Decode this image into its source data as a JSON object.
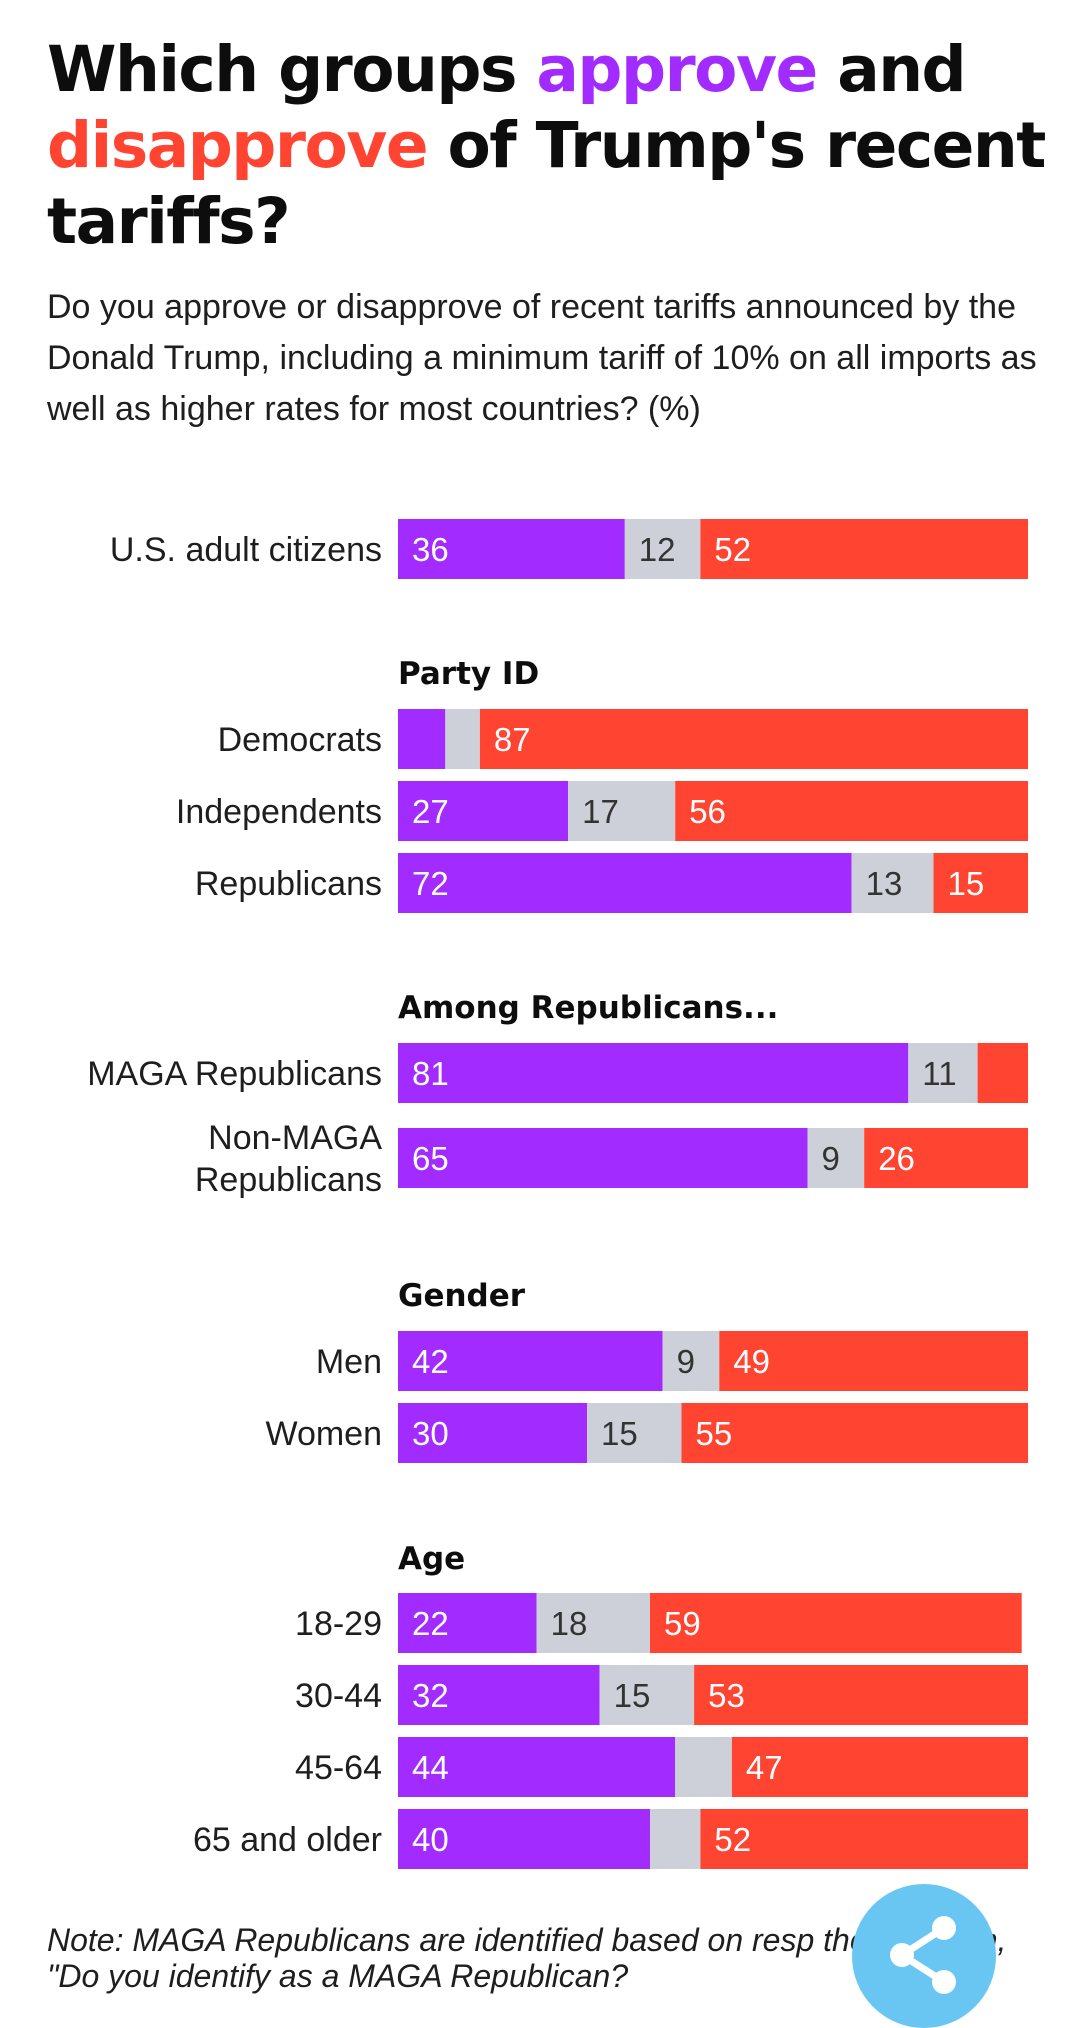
{
  "title": {
    "part1": "Which groups ",
    "approve_word": "approve",
    "part2": " and ",
    "disapprove_word": "disapprove",
    "part3": " of Trump's recent tariffs?"
  },
  "subtitle": "Do you approve or disapprove of recent tariffs announced by the Donald Trump, including a minimum tariff of 10% on all imports as well as higher rates for most countries? (%)",
  "note": "Note: MAGA Republicans are identified based on resp the question, \"Do you identify as a MAGA Republican?",
  "share_icon": "share-icon",
  "colors": {
    "approve": "#a22bff",
    "neither": "#cdd0d8",
    "disapprove": "#ff4531",
    "approve_text": "#ffffff",
    "neither_text": "#333333",
    "disapprove_text": "#ffffff",
    "share_button": "#69c6f3"
  },
  "chart_data": {
    "type": "bar",
    "orientation": "horizontal",
    "stacked": true,
    "xlim": [
      0,
      100
    ],
    "segments": [
      "approve",
      "neither",
      "disapprove"
    ],
    "groups": [
      {
        "heading": "",
        "rows": [
          {
            "label": [
              "U.S. adult citizens"
            ],
            "approve": 36,
            "neither": 12,
            "disapprove": 52,
            "labels": [
              "36",
              "12",
              "52"
            ]
          }
        ]
      },
      {
        "heading": "Party ID",
        "rows": [
          {
            "label": [
              "Democrats"
            ],
            "approve": 7.5,
            "neither": 5.5,
            "disapprove": 87,
            "labels": [
              "",
              "",
              "87"
            ]
          },
          {
            "label": [
              "Independents"
            ],
            "approve": 27,
            "neither": 17,
            "disapprove": 56,
            "labels": [
              "27",
              "17",
              "56"
            ]
          },
          {
            "label": [
              "Republicans"
            ],
            "approve": 72,
            "neither": 13,
            "disapprove": 15,
            "labels": [
              "72",
              "13",
              "15"
            ]
          }
        ]
      },
      {
        "heading": "Among Republicans...",
        "rows": [
          {
            "label": [
              "MAGA Republicans"
            ],
            "approve": 81,
            "neither": 11,
            "disapprove": 8,
            "labels": [
              "81",
              "11",
              ""
            ]
          },
          {
            "label": [
              "Non-MAGA",
              "Republicans"
            ],
            "approve": 65,
            "neither": 9,
            "disapprove": 26,
            "labels": [
              "65",
              "9",
              "26"
            ]
          }
        ]
      },
      {
        "heading": "Gender",
        "rows": [
          {
            "label": [
              "Men"
            ],
            "approve": 42,
            "neither": 9,
            "disapprove": 49,
            "labels": [
              "42",
              "9",
              "49"
            ]
          },
          {
            "label": [
              "Women"
            ],
            "approve": 30,
            "neither": 15,
            "disapprove": 55,
            "labels": [
              "30",
              "15",
              "55"
            ]
          }
        ]
      },
      {
        "heading": "Age",
        "rows": [
          {
            "label": [
              "18-29"
            ],
            "approve": 22,
            "neither": 18,
            "disapprove": 59,
            "labels": [
              "22",
              "18",
              "59"
            ]
          },
          {
            "label": [
              "30-44"
            ],
            "approve": 32,
            "neither": 15,
            "disapprove": 53,
            "labels": [
              "32",
              "15",
              "53"
            ]
          },
          {
            "label": [
              "45-64"
            ],
            "approve": 44,
            "neither": 9,
            "disapprove": 47,
            "labels": [
              "44",
              "",
              "47"
            ]
          },
          {
            "label": [
              "65 and older"
            ],
            "approve": 40,
            "neither": 8,
            "disapprove": 52,
            "labels": [
              "40",
              "",
              "52"
            ]
          }
        ]
      }
    ]
  }
}
